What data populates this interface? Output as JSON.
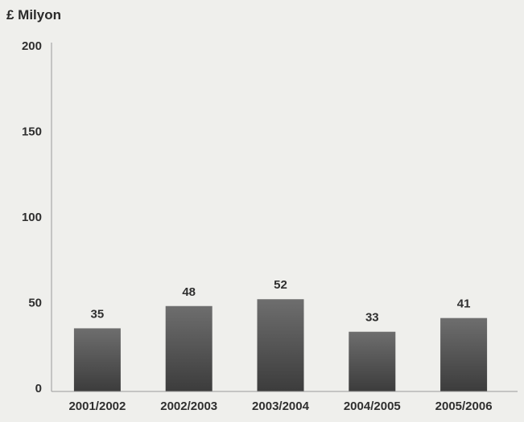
{
  "chart_data": {
    "type": "bar",
    "unit_label": "£ Milyon",
    "categories": [
      "2001/2002",
      "2002/2003",
      "2003/2004",
      "2004/2005",
      "2005/2006"
    ],
    "values": [
      35,
      48,
      52,
      33,
      41
    ],
    "data_labels": [
      "35",
      "48",
      "52",
      "33",
      "41"
    ],
    "yticks": [
      "0",
      "50",
      "100",
      "150",
      "200"
    ],
    "ylim": [
      0,
      200
    ],
    "grid": false,
    "bar_color_top": "#6e6e6e",
    "bar_color_bottom": "#3c3c3c"
  }
}
